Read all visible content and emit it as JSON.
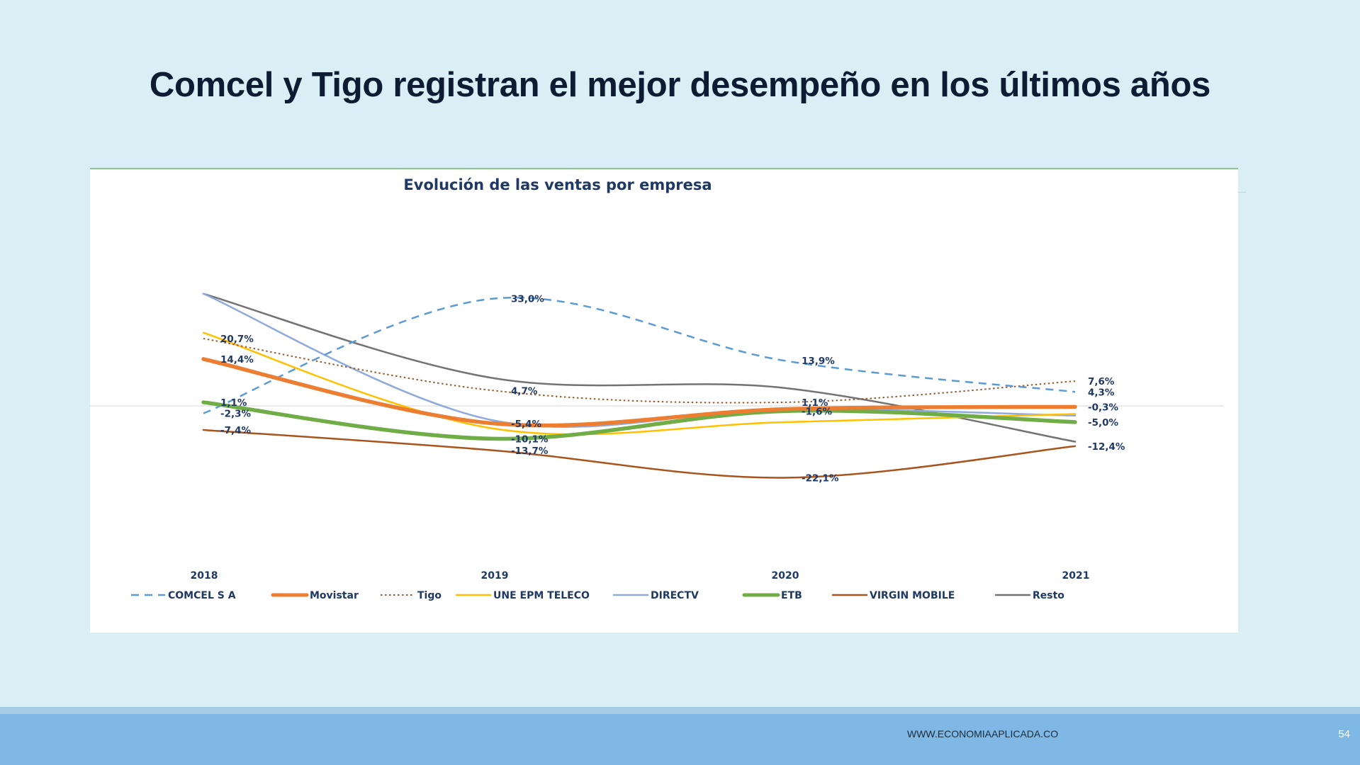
{
  "slide": {
    "title": "Comcel y Tigo registran el mejor desempeño en los últimos años",
    "footer_url": "WWW.ECONOMIAAPLICADA.CO",
    "page_number": "54"
  },
  "chart_data": {
    "type": "line",
    "title": "Evolución de las ventas por empresa",
    "x": [
      "2018",
      "2019",
      "2020",
      "2021"
    ],
    "legend_position": "bottom",
    "grid": false,
    "series": [
      {
        "name": "COMCEL S A",
        "values": [
          -2.3,
          33.0,
          13.9,
          4.3
        ],
        "labels": [
          "-2,3%",
          "33,0%",
          "13,9%",
          "4,3%"
        ],
        "color": "#5b9bd5",
        "style": "dashed"
      },
      {
        "name": "Movistar",
        "values": [
          14.4,
          -5.4,
          -1.0,
          -0.3
        ],
        "labels": [
          "14,4%",
          "-5,4%",
          "",
          "-0,3%"
        ],
        "color": "#ed7d31",
        "style": "thick"
      },
      {
        "name": "Tigo",
        "values": [
          20.7,
          4.7,
          1.1,
          7.6
        ],
        "labels": [
          "20,7%",
          "4,7%",
          "1,1%",
          "7,6%"
        ],
        "color": "#9c5a2c",
        "style": "dotted"
      },
      {
        "name": "UNE EPM TELECO",
        "values": [
          22.5,
          -7.0,
          -5.0,
          -2.5
        ],
        "labels": [
          "",
          "",
          "",
          ""
        ],
        "color": "#ffc000",
        "style": "solid"
      },
      {
        "name": "DIRECTV",
        "values": [
          34.5,
          -4.5,
          -1.0,
          -3.0
        ],
        "labels": [
          "",
          "",
          "",
          ""
        ],
        "color": "#8faadc",
        "style": "solid"
      },
      {
        "name": "ETB",
        "values": [
          1.1,
          -10.1,
          -1.6,
          -5.0
        ],
        "labels": [
          "1,1%",
          "-10,1%",
          "-1,6%",
          "-5,0%"
        ],
        "color": "#70ad47",
        "style": "thick"
      },
      {
        "name": "VIRGIN MOBILE",
        "values": [
          -7.4,
          -13.7,
          -22.1,
          -12.4
        ],
        "labels": [
          "-7,4%",
          "-13,7%",
          "-22,1%",
          "-12,4%"
        ],
        "color": "#a9541c",
        "style": "solid"
      },
      {
        "name": "Resto",
        "values": [
          34.5,
          8.5,
          5.5,
          -11.0
        ],
        "labels": [
          "",
          "",
          "",
          ""
        ],
        "color": "#737373",
        "style": "solid"
      }
    ]
  }
}
